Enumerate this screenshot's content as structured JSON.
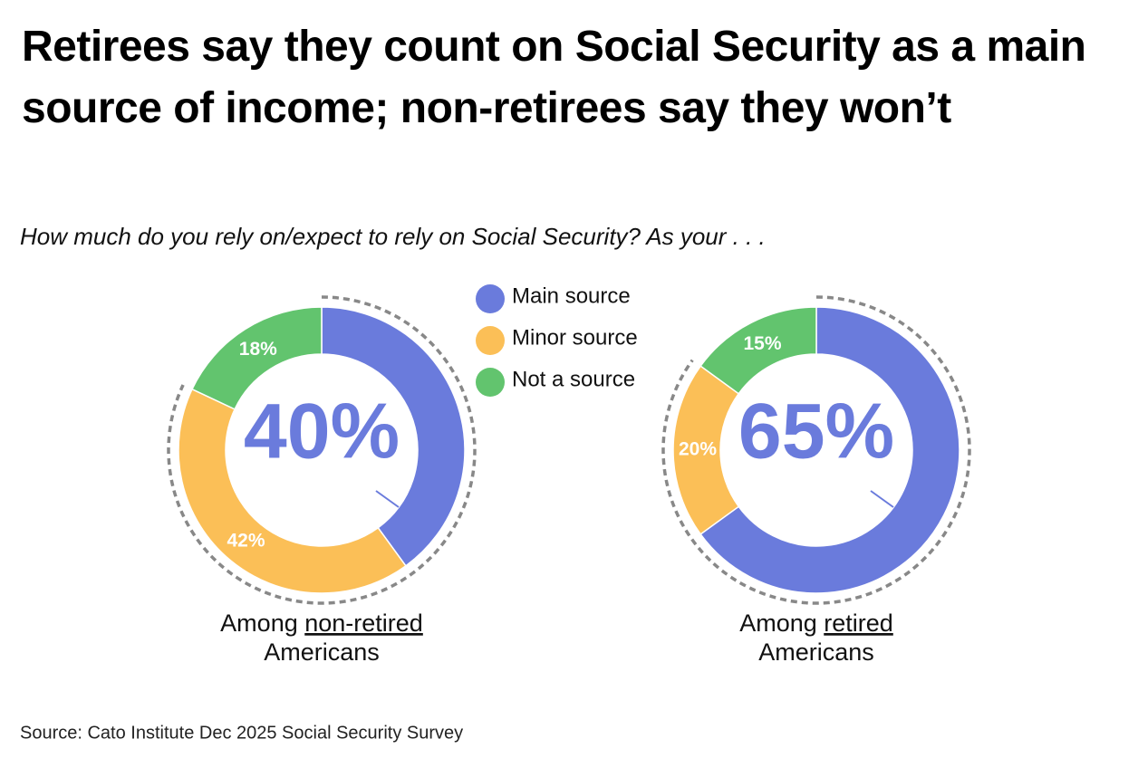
{
  "header": {
    "title": "Retirees say they count on Social Security as a main source of income; non-retirees say they won’t",
    "subtitle": "How much do you rely on/expect to rely on Social Security? As your . . ."
  },
  "legend": {
    "categories": [
      "Main source",
      "Minor source",
      "Not a source"
    ],
    "colors": [
      "#6a7bdc",
      "#fbbf57",
      "#62c46e"
    ]
  },
  "chart_data": [
    {
      "type": "donut",
      "caption": {
        "before": "Among",
        "emphasis": "non-retired",
        "after": "Americans"
      },
      "values": [
        40,
        42,
        18
      ],
      "value_labels": [
        "40%",
        "42%",
        "18%"
      ]
    },
    {
      "type": "donut",
      "caption": {
        "before": "Among",
        "emphasis": "retired",
        "after": "Americans"
      },
      "values": [
        65,
        20,
        15
      ],
      "value_labels": [
        "65%",
        "20%",
        "15%"
      ]
    }
  ],
  "footer": {
    "source": "Source: Cato Institute Dec 2025 Social Security Survey"
  }
}
